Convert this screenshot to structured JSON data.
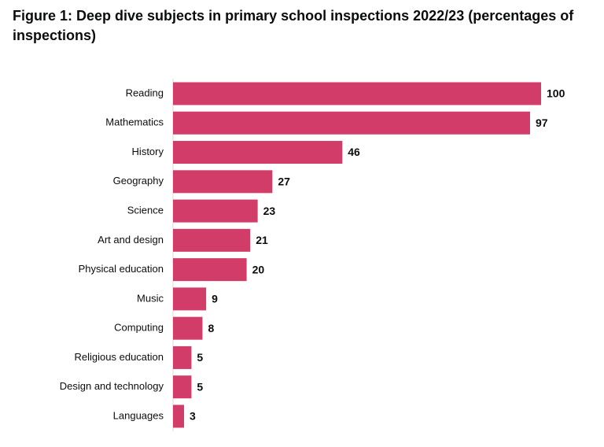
{
  "chart_data": {
    "type": "barh",
    "title": "Figure 1: Deep dive subjects in primary school inspections 2022/23 (percentages of inspections)",
    "categories": [
      "Reading",
      "Mathematics",
      "History",
      "Geography",
      "Science",
      "Art and design",
      "Physical education",
      "Music",
      "Computing",
      "Religious education",
      "Design and technology",
      "Languages"
    ],
    "values": [
      100,
      97,
      46,
      27,
      23,
      21,
      20,
      9,
      8,
      5,
      5,
      3
    ],
    "color": "#d13c69",
    "xlim": [
      0,
      100
    ]
  }
}
